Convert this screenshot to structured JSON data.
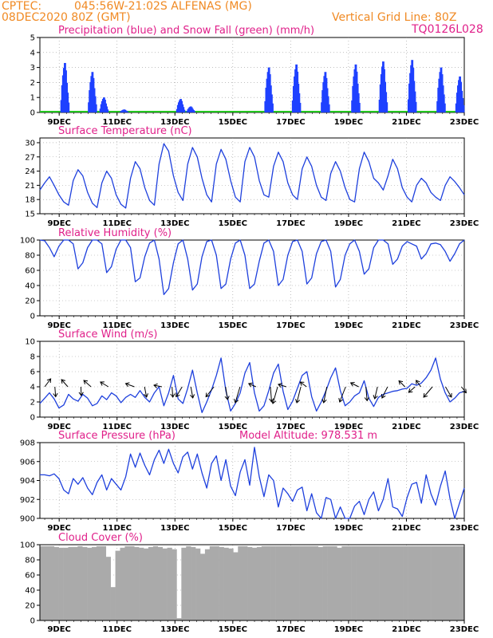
{
  "header": {
    "source": "CPTEC:",
    "location": "045:56W-21:02S  ALFENAS (MG)",
    "init_time": "08DEC2020 80Z (GMT)",
    "grid_note": "Vertical Grid Line: 80Z",
    "run_id": "TQ0126L028"
  },
  "chart_data": [
    {
      "type": "bar",
      "title": "Precipitation (blue) and Snow Fall (green) (mm/h)",
      "xlabel": "",
      "ylabel": "",
      "ylim": [
        0,
        5
      ],
      "yticks": [
        "0",
        "1",
        "2",
        "3",
        "4",
        "5"
      ],
      "x_ticks": [
        "9DEC",
        "11DEC",
        "13DEC",
        "15DEC",
        "17DEC",
        "19DEC",
        "21DEC",
        "23DEC"
      ],
      "x_range_days": [
        8.33,
        23.0
      ],
      "series": [
        {
          "name": "Precipitation",
          "color": "#1e40ff",
          "bursts": [
            {
              "day": 9.2,
              "peak": 3.3
            },
            {
              "day": 10.15,
              "peak": 2.7
            },
            {
              "day": 10.55,
              "peak": 1.0
            },
            {
              "day": 11.25,
              "peak": 0.2
            },
            {
              "day": 13.2,
              "peak": 0.9
            },
            {
              "day": 13.55,
              "peak": 0.4
            },
            {
              "day": 16.25,
              "peak": 3.0
            },
            {
              "day": 17.2,
              "peak": 3.2
            },
            {
              "day": 18.2,
              "peak": 2.7
            },
            {
              "day": 19.25,
              "peak": 3.2
            },
            {
              "day": 20.2,
              "peak": 3.4
            },
            {
              "day": 21.2,
              "peak": 3.5
            },
            {
              "day": 22.2,
              "peak": 3.0
            },
            {
              "day": 22.85,
              "peak": 2.4
            }
          ]
        },
        {
          "name": "Snow Fall",
          "color": "#22c41e",
          "values": [
            0
          ]
        }
      ]
    },
    {
      "type": "line",
      "title": "Surface Temperature (nC)",
      "xlabel": "",
      "ylabel": "",
      "ylim": [
        15,
        31
      ],
      "yticks": [
        "15",
        "18",
        "21",
        "24",
        "27",
        "30"
      ],
      "x_ticks": [
        "9DEC",
        "11DEC",
        "13DEC",
        "15DEC",
        "17DEC",
        "19DEC",
        "21DEC",
        "23DEC"
      ],
      "series": [
        {
          "name": "",
          "color": "#1e40dd",
          "values": [
            20.0,
            21.5,
            22.8,
            21.0,
            19.0,
            17.5,
            16.8,
            22.0,
            24.3,
            23.0,
            19.5,
            17.2,
            16.3,
            21.5,
            24.0,
            22.5,
            19.0,
            17.0,
            16.2,
            22.5,
            26.0,
            24.5,
            20.5,
            17.8,
            16.8,
            25.5,
            29.8,
            28.2,
            23.0,
            19.5,
            17.8,
            25.5,
            29.0,
            27.0,
            22.5,
            19.0,
            17.5,
            25.5,
            28.6,
            26.5,
            22.0,
            18.5,
            17.5,
            26.0,
            29.0,
            27.0,
            22.0,
            19.0,
            18.5,
            25.0,
            28.0,
            26.0,
            21.5,
            19.0,
            18.0,
            24.5,
            27.0,
            25.0,
            21.0,
            18.5,
            17.8,
            23.5,
            26.0,
            24.0,
            20.5,
            18.0,
            17.5,
            24.5,
            28.0,
            26.0,
            22.5,
            21.5,
            20.0,
            23.0,
            26.5,
            24.5,
            20.5,
            18.5,
            17.5,
            21.0,
            22.5,
            21.5,
            19.5,
            18.5,
            17.8,
            21.0,
            22.8,
            21.8,
            20.5,
            19.0
          ]
        }
      ]
    },
    {
      "type": "line",
      "title": "Relative Humidity (%)",
      "xlabel": "",
      "ylabel": "",
      "ylim": [
        0,
        100
      ],
      "yticks": [
        "0",
        "20",
        "40",
        "60",
        "80",
        "100"
      ],
      "x_ticks": [
        "9DEC",
        "11DEC",
        "13DEC",
        "15DEC",
        "17DEC",
        "19DEC",
        "21DEC",
        "23DEC"
      ],
      "series": [
        {
          "name": "",
          "color": "#1e40dd",
          "values": [
            100,
            99,
            90,
            78,
            92,
            100,
            100,
            95,
            62,
            70,
            90,
            100,
            100,
            95,
            57,
            65,
            88,
            100,
            100,
            90,
            45,
            50,
            78,
            96,
            100,
            75,
            28,
            36,
            70,
            95,
            100,
            75,
            34,
            42,
            78,
            98,
            100,
            80,
            36,
            42,
            75,
            96,
            100,
            80,
            36,
            42,
            72,
            96,
            100,
            85,
            40,
            48,
            80,
            98,
            100,
            85,
            42,
            50,
            82,
            98,
            100,
            85,
            38,
            48,
            80,
            95,
            100,
            85,
            55,
            62,
            90,
            100,
            100,
            95,
            68,
            75,
            92,
            98,
            95,
            92,
            75,
            82,
            95,
            96,
            94,
            85,
            72,
            82,
            95,
            100
          ]
        }
      ]
    },
    {
      "type": "line",
      "title": "Surface Wind (m/s)",
      "xlabel": "",
      "ylabel": "",
      "ylim": [
        0,
        10
      ],
      "yticks": [
        "0",
        "2",
        "4",
        "6",
        "8",
        "10"
      ],
      "x_ticks": [
        "9DEC",
        "11DEC",
        "13DEC",
        "15DEC",
        "17DEC",
        "19DEC",
        "21DEC",
        "23DEC"
      ],
      "series": [
        {
          "name": "",
          "color": "#1e40dd",
          "values": [
            1.8,
            2.5,
            3.2,
            2.4,
            1.2,
            1.6,
            3.0,
            2.4,
            2.1,
            3.0,
            2.5,
            1.5,
            1.8,
            2.8,
            2.3,
            3.2,
            2.8,
            1.9,
            2.6,
            3.0,
            2.6,
            3.5,
            2.6,
            2.0,
            3.2,
            4.0,
            1.5,
            3.2,
            5.5,
            2.4,
            1.8,
            3.8,
            6.2,
            3.2,
            0.6,
            2.0,
            3.6,
            5.5,
            7.8,
            3.5,
            0.8,
            1.8,
            3.2,
            5.8,
            7.2,
            3.2,
            0.8,
            1.5,
            3.5,
            5.8,
            7.0,
            3.4,
            1.0,
            2.1,
            3.8,
            5.5,
            6.0,
            2.7,
            0.8,
            2.0,
            3.5,
            5.2,
            6.5,
            3.5,
            1.5,
            2.0,
            2.8,
            3.2,
            4.8,
            2.5,
            1.4,
            2.6,
            3.0,
            3.2,
            3.4,
            3.5,
            3.7,
            3.8,
            4.4,
            4.2,
            4.5,
            5.2,
            6.2,
            7.8,
            5.0,
            3.2,
            2.0,
            2.5,
            3.2,
            3.4
          ]
        }
      ],
      "wind_vectors": [
        {
          "day": 8.5,
          "u": 1.5,
          "v": 2.0
        },
        {
          "day": 8.85,
          "u": 0.2,
          "v": -2.5
        },
        {
          "day": 9.3,
          "u": -1.6,
          "v": 1.8
        },
        {
          "day": 9.75,
          "u": 0.1,
          "v": -2.2
        },
        {
          "day": 10.1,
          "u": -1.8,
          "v": 1.6
        },
        {
          "day": 10.7,
          "u": -2.0,
          "v": 1.2
        },
        {
          "day": 11.6,
          "u": -2.2,
          "v": 0.8
        },
        {
          "day": 11.95,
          "u": 0.5,
          "v": -2.6
        },
        {
          "day": 12.55,
          "u": -2.0,
          "v": 0.4
        },
        {
          "day": 12.9,
          "u": 0.2,
          "v": -2.6
        },
        {
          "day": 13.25,
          "u": -1.5,
          "v": -2.5
        },
        {
          "day": 13.55,
          "u": 0.5,
          "v": -2.8
        },
        {
          "day": 14.35,
          "u": -2.0,
          "v": -2.5
        },
        {
          "day": 14.75,
          "u": 0.5,
          "v": -3.2
        },
        {
          "day": 15.25,
          "u": -1.2,
          "v": -4.0
        },
        {
          "day": 15.8,
          "u": -1.8,
          "v": 0.8
        },
        {
          "day": 16.3,
          "u": 0.3,
          "v": -3.8
        },
        {
          "day": 16.55,
          "u": -1.2,
          "v": -4.2
        },
        {
          "day": 16.85,
          "u": -2.0,
          "v": 0.6
        },
        {
          "day": 17.35,
          "u": -1.0,
          "v": -4.0
        },
        {
          "day": 17.55,
          "u": -1.6,
          "v": 1.2
        },
        {
          "day": 18.25,
          "u": -0.8,
          "v": -4.0
        },
        {
          "day": 18.9,
          "u": -1.5,
          "v": -3.8
        },
        {
          "day": 19.35,
          "u": -2.0,
          "v": 1.0
        },
        {
          "day": 19.6,
          "u": 0.3,
          "v": -3.5
        },
        {
          "day": 20.0,
          "u": -0.7,
          "v": -3.0
        },
        {
          "day": 20.35,
          "u": -1.4,
          "v": -2.8
        },
        {
          "day": 20.95,
          "u": -1.5,
          "v": 1.5
        },
        {
          "day": 21.3,
          "u": -1.6,
          "v": -1.4
        },
        {
          "day": 21.5,
          "u": -1.2,
          "v": 1.6
        },
        {
          "day": 21.9,
          "u": -2.2,
          "v": -2.6
        },
        {
          "day": 22.35,
          "u": 1.5,
          "v": -2.6
        },
        {
          "day": 22.9,
          "u": 1.2,
          "v": -1.5
        }
      ]
    },
    {
      "type": "line",
      "title": "Surface Pressure (hPa)",
      "annotation": "Model Altitude: 978.531  m",
      "xlabel": "",
      "ylabel": "",
      "ylim": [
        900,
        908
      ],
      "yticks": [
        "900",
        "902",
        "904",
        "906",
        "908"
      ],
      "x_ticks": [
        "9DEC",
        "11DEC",
        "13DEC",
        "15DEC",
        "17DEC",
        "19DEC",
        "21DEC",
        "23DEC"
      ],
      "series": [
        {
          "name": "",
          "color": "#1e40dd",
          "values": [
            904.6,
            904.6,
            904.5,
            904.7,
            904.2,
            903.0,
            902.6,
            904.2,
            903.6,
            904.3,
            903.2,
            902.5,
            903.8,
            904.6,
            903.0,
            904.2,
            903.6,
            903.0,
            904.4,
            906.8,
            905.4,
            906.9,
            905.6,
            904.6,
            906.2,
            907.2,
            905.8,
            907.3,
            905.8,
            904.8,
            906.5,
            907.0,
            905.2,
            906.8,
            904.8,
            903.2,
            905.8,
            906.6,
            904.0,
            906.2,
            903.4,
            902.4,
            904.9,
            906.2,
            903.5,
            907.5,
            904.4,
            902.3,
            904.6,
            904.0,
            901.2,
            903.2,
            902.6,
            901.8,
            903.0,
            903.3,
            900.8,
            902.6,
            900.6,
            899.6,
            902.2,
            902.0,
            899.8,
            901.2,
            899.9,
            899.2,
            901.3,
            901.8,
            900.4,
            902.0,
            902.8,
            900.8,
            902.0,
            904.2,
            901.2,
            901.0,
            900.2,
            902.2,
            903.6,
            903.8,
            901.6,
            904.6,
            902.6,
            901.4,
            903.4,
            905.0,
            902.1,
            900.0,
            901.6,
            903.2
          ]
        }
      ]
    },
    {
      "type": "area",
      "title": "Cloud Cover (%)",
      "xlabel": "",
      "ylabel": "",
      "ylim": [
        0,
        100
      ],
      "yticks": [
        "0",
        "20",
        "40",
        "60",
        "80",
        "100"
      ],
      "x_ticks": [
        "9DEC",
        "11DEC",
        "13DEC",
        "15DEC",
        "17DEC",
        "19DEC",
        "21DEC",
        "23DEC"
      ],
      "series": [
        {
          "name": "",
          "color": "#aaaaaa",
          "values": [
            98,
            98,
            98,
            97,
            96,
            96,
            97,
            97,
            98,
            97,
            96,
            97,
            98,
            98,
            84,
            44,
            92,
            96,
            98,
            98,
            97,
            96,
            95,
            97,
            98,
            97,
            95,
            96,
            94,
            3,
            96,
            98,
            97,
            95,
            88,
            94,
            98,
            98,
            97,
            96,
            95,
            90,
            98,
            98,
            97,
            96,
            97,
            98,
            98,
            98,
            98,
            98,
            98,
            98,
            98,
            98,
            98,
            98,
            98,
            97,
            98,
            98,
            98,
            96,
            98,
            98,
            98,
            98,
            98,
            98,
            98,
            98,
            98,
            98,
            98,
            98,
            98,
            98,
            98,
            98,
            98,
            98,
            98,
            98,
            98,
            98,
            98,
            98,
            98,
            98
          ]
        }
      ]
    }
  ]
}
